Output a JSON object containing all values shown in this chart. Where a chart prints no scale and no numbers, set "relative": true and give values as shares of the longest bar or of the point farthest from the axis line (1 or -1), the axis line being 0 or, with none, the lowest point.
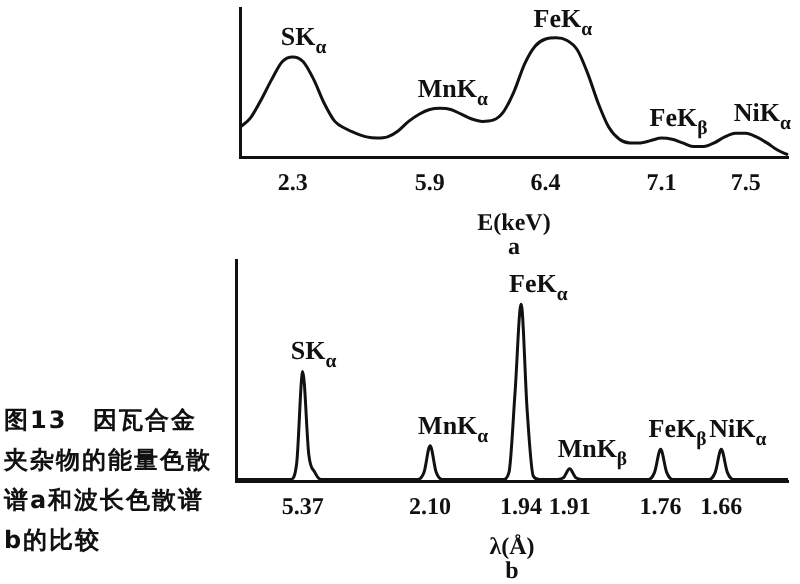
{
  "chart_data": [
    {
      "type": "line",
      "relative": true,
      "xlabel": "E(keV)\na",
      "categories": [
        null,
        null,
        null,
        null,
        null,
        "2.3",
        null,
        null,
        null,
        null,
        null,
        null,
        null,
        null,
        null,
        null,
        null,
        null,
        "5.9",
        null,
        null,
        null,
        null,
        null,
        null,
        null,
        null,
        null,
        null,
        "6.4",
        null,
        null,
        null,
        null,
        null,
        null,
        null,
        null,
        null,
        null,
        "7.1",
        null,
        null,
        null,
        null,
        null,
        null,
        null,
        "7.5",
        null,
        null,
        null,
        null
      ],
      "series": [
        {
          "color": "#111111",
          "values": [
            0.25,
            0.33,
            0.48,
            0.65,
            0.8,
            0.84,
            0.8,
            0.65,
            0.45,
            0.3,
            0.24,
            0.2,
            0.17,
            0.16,
            0.17,
            0.22,
            0.3,
            0.36,
            0.4,
            0.41,
            0.4,
            0.36,
            0.32,
            0.3,
            0.31,
            0.38,
            0.55,
            0.78,
            0.93,
            0.99,
            1,
            0.98,
            0.9,
            0.7,
            0.45,
            0.25,
            0.15,
            0.12,
            0.12,
            0.14,
            0.16,
            0.15,
            0.12,
            0.09,
            0.09,
            0.12,
            0.17,
            0.2,
            0.2,
            0.17,
            0.12,
            0.06,
            0.02
          ]
        }
      ],
      "annotations": [
        {
          "text": "SK$_{α}$",
          "x": "2.3",
          "y": 0.84
        },
        {
          "text": "MnK$_{α}$",
          "x": "5.9",
          "y": 0.4
        },
        {
          "text": "FeK$_{α}$",
          "x": "6.4",
          "y": 0.99
        },
        {
          "text": "FeK$_{β}$",
          "x": "7.1",
          "y": 0.16
        },
        {
          "text": "NiK$_{α}$",
          "x": "7.5",
          "y": 0.2
        }
      ],
      "legend": false,
      "grid": false,
      "marker": "none"
    },
    {
      "type": "line",
      "relative": true,
      "xlabel": "λ(Å)\nb",
      "categories": [
        null,
        null,
        null,
        null,
        null,
        null,
        null,
        null,
        null,
        null,
        null,
        "5.37",
        null,
        null,
        null,
        null,
        null,
        null,
        null,
        null,
        null,
        null,
        null,
        null,
        null,
        null,
        null,
        null,
        null,
        null,
        null,
        null,
        "2.10",
        null,
        null,
        null,
        null,
        null,
        null,
        null,
        null,
        null,
        null,
        null,
        null,
        null,
        null,
        "1.94",
        null,
        null,
        null,
        null,
        null,
        null,
        null,
        "1.91",
        null,
        null,
        null,
        null,
        null,
        null,
        null,
        null,
        null,
        null,
        null,
        null,
        null,
        null,
        "1.76",
        null,
        null,
        null,
        null,
        null,
        null,
        null,
        null,
        null,
        "1.66",
        null,
        null,
        null,
        null,
        null,
        null,
        null,
        null,
        null,
        null,
        null
      ],
      "series": [
        {
          "color": "#111111",
          "values": [
            0.01,
            0.01,
            0.01,
            0.01,
            0.01,
            0.01,
            0.01,
            0.01,
            0.01,
            0.01,
            0.1,
            0.62,
            0.15,
            0.05,
            0.01,
            0.01,
            0.01,
            0.01,
            0.01,
            0.01,
            0.01,
            0.01,
            0.01,
            0.01,
            0.01,
            0.01,
            0.01,
            0.01,
            0.01,
            0.01,
            0.01,
            0.05,
            0.2,
            0.05,
            0.01,
            0.01,
            0.01,
            0.01,
            0.01,
            0.01,
            0.01,
            0.01,
            0.01,
            0.01,
            0.01,
            0.05,
            0.5,
            1,
            0.4,
            0.03,
            0.01,
            0.01,
            0.01,
            0.01,
            0.02,
            0.07,
            0.02,
            0.01,
            0.01,
            0.01,
            0.01,
            0.01,
            0.01,
            0.01,
            0.01,
            0.01,
            0.01,
            0.01,
            0.01,
            0.05,
            0.18,
            0.05,
            0.01,
            0.01,
            0.01,
            0.01,
            0.01,
            0.01,
            0.01,
            0.05,
            0.18,
            0.05,
            0.01,
            0.01,
            0.01,
            0.01,
            0.01,
            0.01,
            0.01,
            0.01,
            0.01,
            0.01
          ]
        }
      ],
      "annotations": [
        {
          "text": "SK$_{α}$",
          "x": "5.37",
          "y": 0.62
        },
        {
          "text": "MnK$_{α}$",
          "x": "2.10",
          "y": 0.2
        },
        {
          "text": "FeK$_{α}$",
          "x": "1.94",
          "y": 1
        },
        {
          "text": "MnK$_{β}$",
          "x": "1.91",
          "y": 0.07
        },
        {
          "text": "FeK$_{β}$",
          "x": "1.76",
          "y": 0.18
        },
        {
          "text": "NiK$_{α}$",
          "x": "1.66",
          "y": 0.18
        },
        "图13　因瓦合金夹杂物的能量色散谱a和波长色散谱b的比较"
      ],
      "legend": false,
      "grid": false,
      "marker": "none"
    }
  ]
}
